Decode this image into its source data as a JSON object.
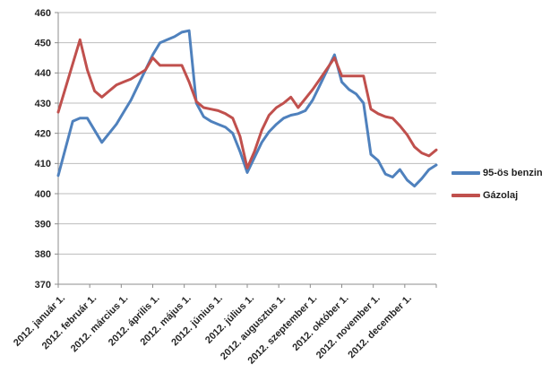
{
  "chart_data": {
    "type": "line",
    "title": "",
    "xlabel": "",
    "ylabel": "",
    "grid": true,
    "legend_position": "right",
    "x_axis": {
      "tick_labels": [
        "2012. január 1.",
        "2012. február 1.",
        "2012. március 1.",
        "2012. április 1.",
        "2012. május 1.",
        "2012. június 1.",
        "2012. július 1.",
        "2012. augusztus 1.",
        "2012. szeptember 1.",
        "2012. október 1.",
        "2012. november 1.",
        "2012. december 1."
      ]
    },
    "y_axis": {
      "min": 370,
      "max": 460,
      "step": 10,
      "tick_labels": [
        "370",
        "380",
        "390",
        "400",
        "410",
        "420",
        "430",
        "440",
        "450",
        "460"
      ]
    },
    "series": [
      {
        "name": "95-ös benzin",
        "color": "#4F81BD",
        "values": [
          406,
          415,
          424,
          425,
          425,
          421,
          417,
          420,
          423,
          427,
          431,
          436,
          441,
          446,
          450,
          451,
          452,
          453.5,
          454,
          430,
          425.5,
          424,
          423,
          422,
          420,
          414,
          407,
          412,
          417,
          420.5,
          423,
          425,
          426,
          426.5,
          427.5,
          431,
          436,
          441,
          446,
          437,
          434.5,
          433,
          430,
          413,
          411,
          406.5,
          405.5,
          408,
          404.5,
          402.5,
          405,
          408,
          409.5
        ]
      },
      {
        "name": "Gázolaj",
        "color": "#C0504D",
        "values": [
          427,
          435,
          443,
          451,
          441,
          434,
          432,
          434,
          436,
          437,
          438,
          439.5,
          441,
          445,
          442.5,
          442.5,
          442.5,
          442.5,
          437,
          430.5,
          428.5,
          428,
          427.5,
          426.5,
          425,
          419,
          408.5,
          414,
          421,
          426,
          428.5,
          430,
          432,
          428.5,
          431.5,
          434.5,
          438,
          441.5,
          445,
          439,
          439,
          439,
          439,
          428,
          426.5,
          425.5,
          425,
          422.5,
          419.5,
          415.5,
          413.5,
          412.5,
          414.5
        ]
      }
    ]
  },
  "colors": {
    "background": "#FFFFFF",
    "gridline": "#BDBDBD",
    "axis": "#8C8C8C",
    "tick_text": "#262626"
  }
}
